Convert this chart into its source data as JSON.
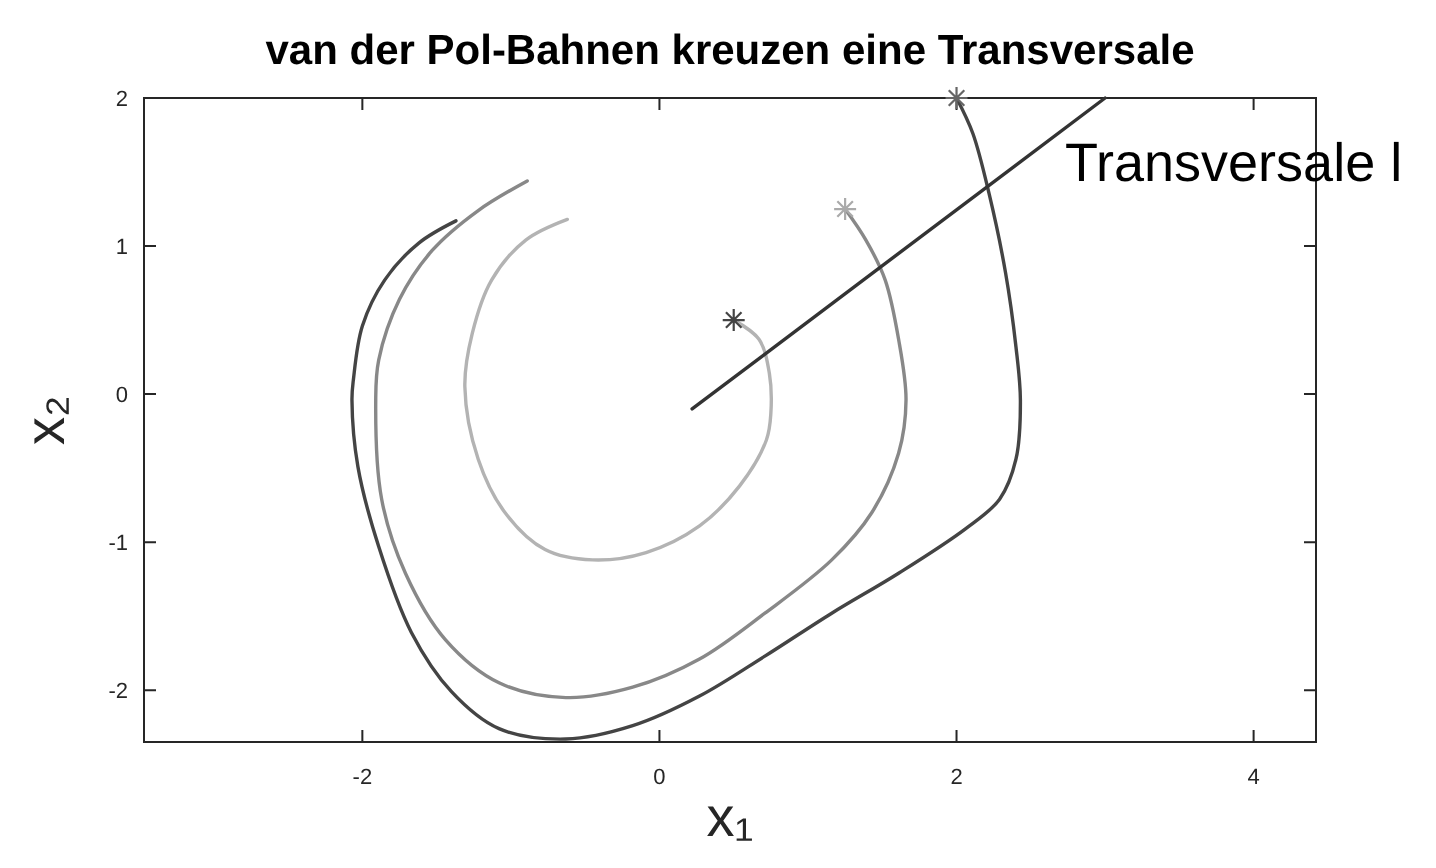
{
  "chart_data": {
    "type": "line",
    "title": "van der Pol-Bahnen kreuzen eine Transversale",
    "xlabel": "x₁",
    "ylabel": "x₂",
    "xlim": [
      -3.47,
      4.42
    ],
    "ylim": [
      -2.35,
      2
    ],
    "xticks": [
      -2,
      0,
      2,
      4
    ],
    "yticks": [
      -2,
      -1,
      0,
      1,
      2
    ],
    "series": [
      {
        "color": "#b3b3b3",
        "x": [
          0.5,
          0.67,
          0.74,
          0.75,
          0.72,
          0.54,
          0.27,
          -0.09,
          -0.45,
          -0.77,
          -1.04,
          -1.22,
          -1.31,
          -1.26,
          -1.13,
          -0.9,
          -0.62
        ],
        "values": [
          0.5,
          0.37,
          0.14,
          -0.13,
          -0.31,
          -0.62,
          -0.89,
          -1.07,
          -1.12,
          -1.05,
          -0.8,
          -0.44,
          0.05,
          0.41,
          0.77,
          1.04,
          1.18
        ]
      },
      {
        "color": "#888888",
        "x": [
          1.25,
          1.39,
          1.52,
          1.61,
          1.66,
          1.61,
          1.43,
          1.16,
          0.71,
          0.27,
          -0.18,
          -0.63,
          -1.08,
          -1.44,
          -1.71,
          -1.87,
          -1.91,
          -1.89,
          -1.75,
          -1.53,
          -1.22,
          -0.89
        ],
        "values": [
          1.25,
          1.04,
          0.77,
          0.37,
          -0.04,
          -0.4,
          -0.8,
          -1.12,
          -1.48,
          -1.79,
          -1.98,
          -2.05,
          -1.95,
          -1.66,
          -1.21,
          -0.71,
          -0.04,
          0.23,
          0.64,
          0.97,
          1.24,
          1.44
        ]
      },
      {
        "color": "#444444",
        "x": [
          2,
          2.11,
          2.22,
          2.33,
          2.4,
          2.43,
          2.4,
          2.29,
          2.06,
          1.61,
          1.16,
          0.71,
          0.27,
          -0.18,
          -0.63,
          -1.08,
          -1.4,
          -1.67,
          -1.89,
          -2.03,
          -2.07,
          -2.06,
          -2,
          -1.85,
          -1.62,
          -1.37
        ],
        "values": [
          2,
          1.76,
          1.35,
          0.82,
          0.32,
          -0.04,
          -0.44,
          -0.71,
          -0.91,
          -1.21,
          -1.48,
          -1.77,
          -2.04,
          -2.24,
          -2.33,
          -2.26,
          -2.01,
          -1.61,
          -1.03,
          -0.49,
          -0.04,
          0.1,
          0.46,
          0.77,
          1.02,
          1.17
        ]
      },
      {
        "name": "Transversale l",
        "color": "#333333",
        "x": [
          0.22,
          3
        ],
        "values": [
          -0.1,
          2
        ]
      },
      {
        "type": "scatter",
        "marker": "cross",
        "colors": [
          "#444444",
          "#aaaaaa",
          "#666666"
        ],
        "x": [
          0.5,
          1.25,
          2
        ],
        "values": [
          0.5,
          1.25,
          2
        ]
      }
    ]
  }
}
